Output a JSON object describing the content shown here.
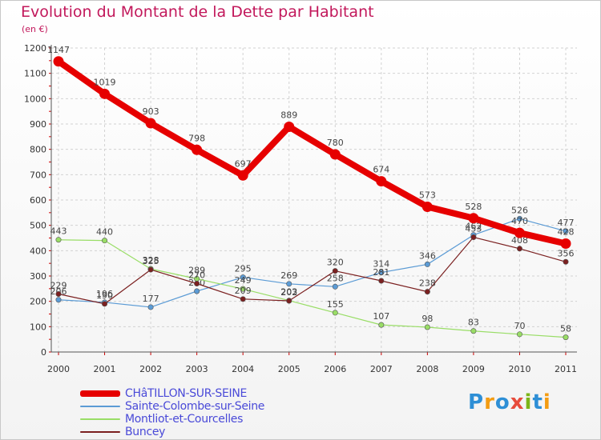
{
  "title": "Evolution du Montant de la Dette par Habitant",
  "subtitle": "(en €)",
  "logo": {
    "text": "Proxiti",
    "colors": [
      "#2e8fd6",
      "#f39c12",
      "#2e8fd6",
      "#e74c3c",
      "#7cb518",
      "#2e8fd6",
      "#f39c12"
    ]
  },
  "chart_data": {
    "type": "line",
    "x": [
      "2000",
      "2001",
      "2002",
      "2003",
      "2004",
      "2005",
      "2006",
      "2007",
      "2008",
      "2009",
      "2010",
      "2011"
    ],
    "ylim": [
      0,
      1200
    ],
    "yticks": [
      0,
      100,
      200,
      300,
      400,
      500,
      600,
      700,
      800,
      900,
      1000,
      1100,
      1200
    ],
    "grid": true,
    "legend_position": "bottom-left",
    "series": [
      {
        "name": "CHâTILLON-SUR-SEINE",
        "color": "#e60000",
        "values": [
          1147,
          1019,
          903,
          798,
          697,
          889,
          780,
          674,
          573,
          528,
          470,
          428
        ]
      },
      {
        "name": "Sainte-Colombe-sur-Seine",
        "color": "#5b9bd5",
        "values": [
          206,
          196,
          177,
          240,
          295,
          269,
          258,
          314,
          346,
          462,
          526,
          477
        ]
      },
      {
        "name": "Montliot-et-Courcelles",
        "color": "#99dd66",
        "values": [
          443,
          440,
          328,
          289,
          249,
          203,
          155,
          107,
          98,
          83,
          70,
          58
        ]
      },
      {
        "name": "Buncey",
        "color": "#7b2020",
        "values": [
          229,
          190,
          325,
          270,
          209,
          202,
          320,
          281,
          238,
          453,
          408,
          356
        ]
      }
    ]
  }
}
